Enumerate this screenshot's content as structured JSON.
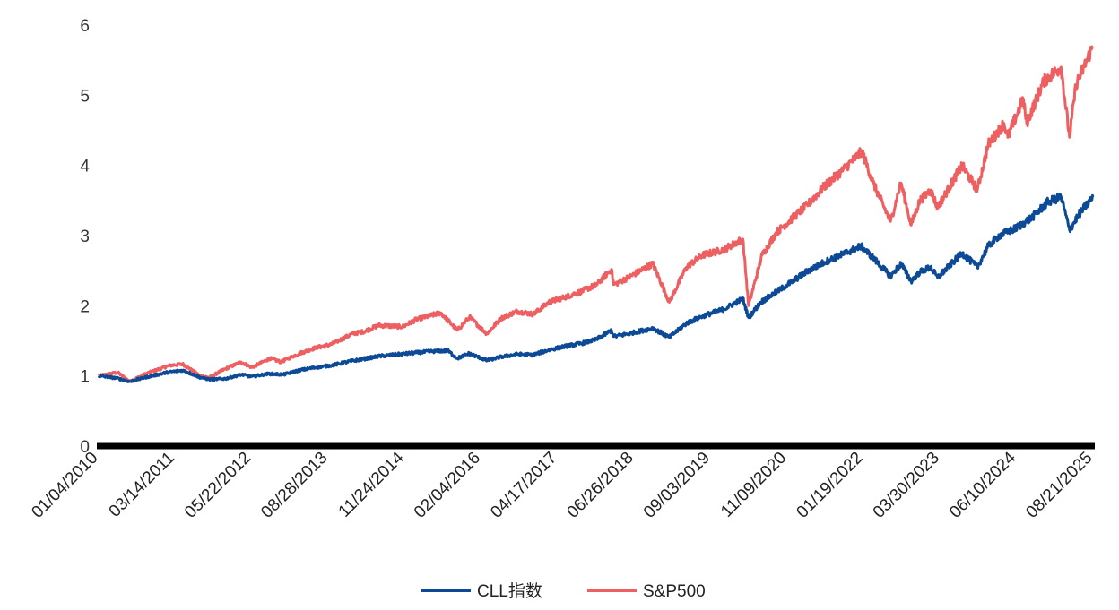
{
  "chart_data": {
    "type": "line",
    "title": "",
    "xlabel": "",
    "ylabel": "",
    "x_start": "01/04/2010",
    "x_end": "08/21/2025",
    "x_tick_labels": [
      "01/04/2010",
      "03/14/2011",
      "05/22/2012",
      "08/28/2013",
      "11/24/2014",
      "02/04/2016",
      "04/17/2017",
      "06/26/2018",
      "09/03/2019",
      "11/09/2020",
      "01/19/2022",
      "03/30/2023",
      "06/10/2024",
      "08/21/2025"
    ],
    "y_ticks": [
      0,
      1,
      2,
      3,
      4,
      5,
      6
    ],
    "ylim": [
      0,
      6
    ],
    "grid": false,
    "legend": "bottom-center",
    "series": [
      {
        "name": "CLL指数",
        "color": "#0d4a96",
        "points": [
          [
            "01/04/2010",
            1.0
          ],
          [
            "04/15/2010",
            0.97
          ],
          [
            "07/01/2010",
            0.92
          ],
          [
            "10/01/2010",
            0.98
          ],
          [
            "02/01/2011",
            1.05
          ],
          [
            "05/01/2011",
            1.08
          ],
          [
            "08/10/2011",
            0.98
          ],
          [
            "10/01/2011",
            0.95
          ],
          [
            "01/01/2012",
            0.96
          ],
          [
            "04/01/2012",
            1.02
          ],
          [
            "06/01/2012",
            0.99
          ],
          [
            "09/01/2012",
            1.03
          ],
          [
            "12/01/2012",
            1.02
          ],
          [
            "03/01/2013",
            1.08
          ],
          [
            "06/01/2013",
            1.12
          ],
          [
            "09/01/2013",
            1.15
          ],
          [
            "12/01/2013",
            1.2
          ],
          [
            "03/01/2014",
            1.24
          ],
          [
            "06/01/2014",
            1.28
          ],
          [
            "10/01/2014",
            1.31
          ],
          [
            "01/01/2015",
            1.33
          ],
          [
            "04/01/2015",
            1.35
          ],
          [
            "07/01/2015",
            1.36
          ],
          [
            "08/25/2015",
            1.25
          ],
          [
            "11/01/2015",
            1.32
          ],
          [
            "02/11/2016",
            1.22
          ],
          [
            "05/01/2016",
            1.27
          ],
          [
            "08/01/2016",
            1.31
          ],
          [
            "11/01/2016",
            1.3
          ],
          [
            "02/01/2017",
            1.37
          ],
          [
            "05/01/2017",
            1.42
          ],
          [
            "08/01/2017",
            1.46
          ],
          [
            "11/01/2017",
            1.52
          ],
          [
            "01/26/2018",
            1.65
          ],
          [
            "02/08/2018",
            1.56
          ],
          [
            "05/01/2018",
            1.6
          ],
          [
            "09/20/2018",
            1.68
          ],
          [
            "12/24/2018",
            1.55
          ],
          [
            "04/01/2019",
            1.75
          ],
          [
            "07/01/2019",
            1.85
          ],
          [
            "11/01/2019",
            1.95
          ],
          [
            "02/19/2020",
            2.1
          ],
          [
            "03/23/2020",
            1.83
          ],
          [
            "06/01/2020",
            2.05
          ],
          [
            "09/01/2020",
            2.2
          ],
          [
            "12/01/2020",
            2.35
          ],
          [
            "03/01/2021",
            2.5
          ],
          [
            "06/01/2021",
            2.62
          ],
          [
            "09/01/2021",
            2.72
          ],
          [
            "12/29/2021",
            2.85
          ],
          [
            "03/01/2022",
            2.7
          ],
          [
            "06/16/2022",
            2.42
          ],
          [
            "08/15/2022",
            2.6
          ],
          [
            "10/12/2022",
            2.35
          ],
          [
            "12/01/2022",
            2.48
          ],
          [
            "02/01/2023",
            2.55
          ],
          [
            "03/13/2023",
            2.4
          ],
          [
            "06/01/2023",
            2.6
          ],
          [
            "07/31/2023",
            2.75
          ],
          [
            "10/27/2023",
            2.55
          ],
          [
            "12/29/2023",
            2.85
          ],
          [
            "03/01/2024",
            3.0
          ],
          [
            "06/01/2024",
            3.1
          ],
          [
            "09/01/2024",
            3.25
          ],
          [
            "12/06/2024",
            3.48
          ],
          [
            "02/19/2025",
            3.55
          ],
          [
            "04/08/2025",
            3.08
          ],
          [
            "06/01/2025",
            3.3
          ],
          [
            "08/21/2025",
            3.55
          ]
        ]
      },
      {
        "name": "S&P500",
        "color": "#ee5f61",
        "points": [
          [
            "01/04/2010",
            1.0
          ],
          [
            "04/23/2010",
            1.05
          ],
          [
            "07/02/2010",
            0.92
          ],
          [
            "10/01/2010",
            1.03
          ],
          [
            "02/18/2011",
            1.15
          ],
          [
            "05/01/2011",
            1.17
          ],
          [
            "08/10/2011",
            1.0
          ],
          [
            "10/03/2011",
            0.98
          ],
          [
            "01/01/2012",
            1.1
          ],
          [
            "04/01/2012",
            1.2
          ],
          [
            "06/01/2012",
            1.12
          ],
          [
            "09/14/2012",
            1.25
          ],
          [
            "11/15/2012",
            1.2
          ],
          [
            "03/01/2013",
            1.32
          ],
          [
            "06/01/2013",
            1.4
          ],
          [
            "09/01/2013",
            1.45
          ],
          [
            "12/31/2013",
            1.6
          ],
          [
            "03/01/2014",
            1.63
          ],
          [
            "06/01/2014",
            1.72
          ],
          [
            "10/15/2014",
            1.7
          ],
          [
            "12/29/2014",
            1.8
          ],
          [
            "05/21/2015",
            1.9
          ],
          [
            "08/25/2015",
            1.65
          ],
          [
            "11/03/2015",
            1.84
          ],
          [
            "02/11/2016",
            1.6
          ],
          [
            "05/01/2016",
            1.82
          ],
          [
            "08/01/2016",
            1.92
          ],
          [
            "11/04/2016",
            1.88
          ],
          [
            "02/01/2017",
            2.05
          ],
          [
            "05/01/2017",
            2.12
          ],
          [
            "08/01/2017",
            2.2
          ],
          [
            "11/01/2017",
            2.3
          ],
          [
            "01/26/2018",
            2.52
          ],
          [
            "02/08/2018",
            2.3
          ],
          [
            "05/01/2018",
            2.4
          ],
          [
            "09/20/2018",
            2.6
          ],
          [
            "12/24/2018",
            2.05
          ],
          [
            "04/01/2019",
            2.55
          ],
          [
            "07/01/2019",
            2.72
          ],
          [
            "11/01/2019",
            2.8
          ],
          [
            "02/19/2020",
            2.95
          ],
          [
            "03/23/2020",
            2.0
          ],
          [
            "06/08/2020",
            2.72
          ],
          [
            "09/01/2020",
            3.05
          ],
          [
            "12/01/2020",
            3.25
          ],
          [
            "03/01/2021",
            3.45
          ],
          [
            "06/01/2021",
            3.7
          ],
          [
            "09/01/2021",
            3.9
          ],
          [
            "01/03/2022",
            4.2
          ],
          [
            "03/08/2022",
            3.75
          ],
          [
            "06/16/2022",
            3.2
          ],
          [
            "08/15/2022",
            3.75
          ],
          [
            "10/12/2022",
            3.15
          ],
          [
            "12/01/2022",
            3.5
          ],
          [
            "02/01/2023",
            3.65
          ],
          [
            "03/13/2023",
            3.4
          ],
          [
            "07/31/2023",
            4.0
          ],
          [
            "10/27/2023",
            3.65
          ],
          [
            "12/29/2023",
            4.3
          ],
          [
            "03/28/2024",
            4.6
          ],
          [
            "04/19/2024",
            4.4
          ],
          [
            "07/16/2024",
            4.95
          ],
          [
            "08/05/2024",
            4.6
          ],
          [
            "11/11/2024",
            5.2
          ],
          [
            "02/19/2025",
            5.4
          ],
          [
            "04/08/2025",
            4.4
          ],
          [
            "05/15/2025",
            5.15
          ],
          [
            "06/30/2025",
            5.4
          ],
          [
            "08/21/2025",
            5.7
          ]
        ]
      }
    ]
  }
}
